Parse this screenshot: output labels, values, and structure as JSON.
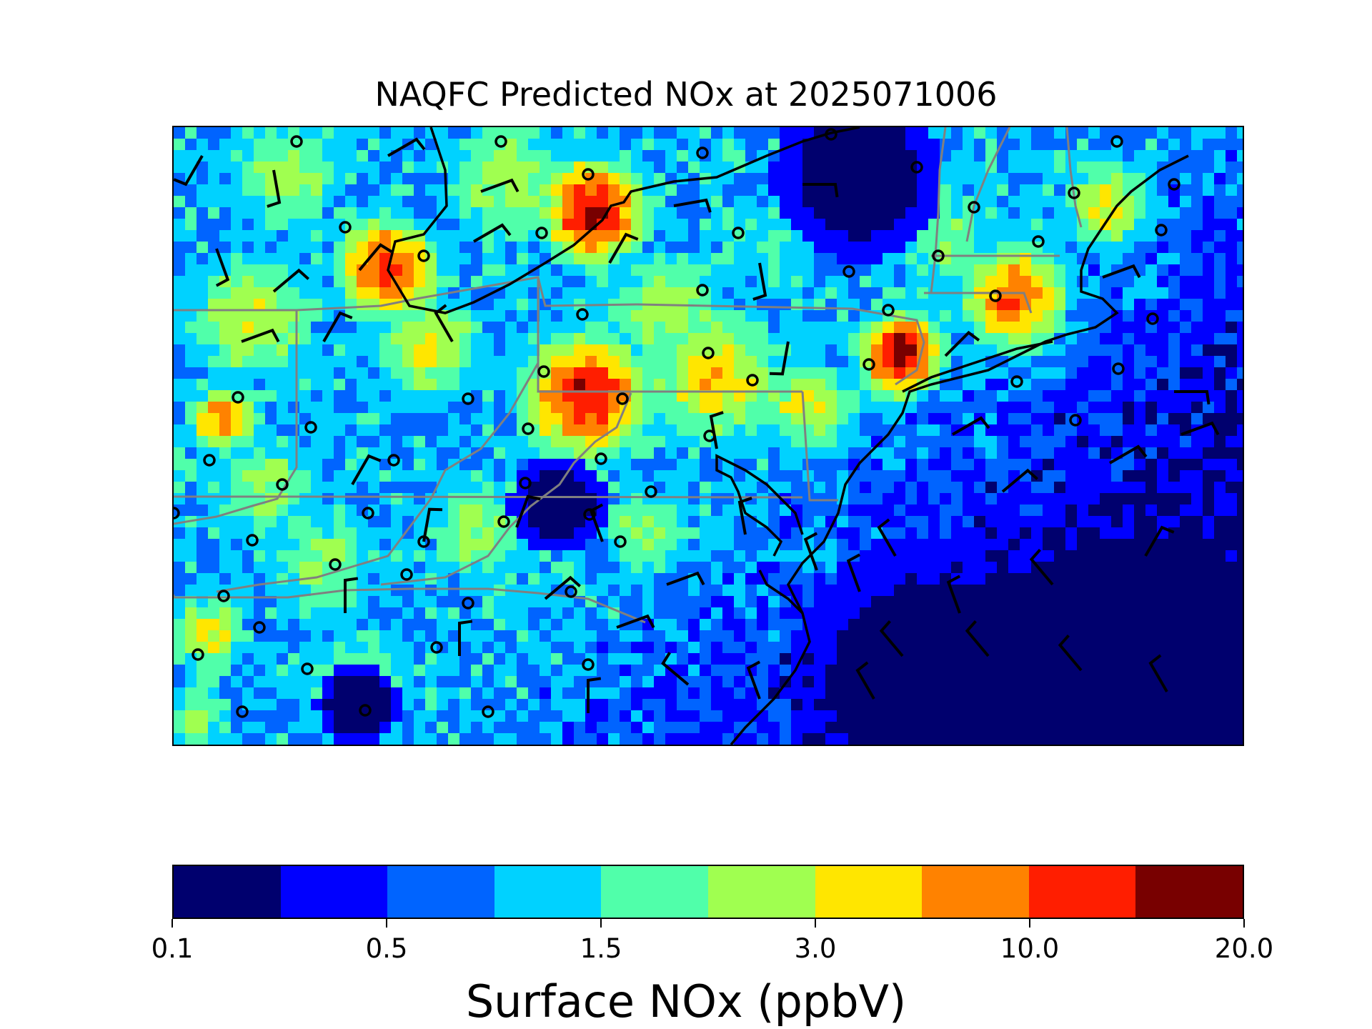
{
  "figure": {
    "title": "NAQFC Predicted NOx at 2025071006"
  },
  "colorbar": {
    "label": "Surface NOx (ppbV)",
    "colors": [
      "#00006e",
      "#0000ff",
      "#0064ff",
      "#00d2ff",
      "#50ffaa",
      "#a0ff50",
      "#ffe600",
      "#ff8200",
      "#ff1e00",
      "#780000"
    ],
    "tick_labels": [
      {
        "text": "0.1",
        "boundary_index": 0
      },
      {
        "text": "0.5",
        "boundary_index": 2
      },
      {
        "text": "1.5",
        "boundary_index": 4
      },
      {
        "text": "3.0",
        "boundary_index": 6
      },
      {
        "text": "10.0",
        "boundary_index": 8
      },
      {
        "text": "20.0",
        "boundary_index": 10
      }
    ]
  },
  "map_layers": {
    "field": "predicted surface NOx concentration",
    "overlays": [
      "coastlines",
      "state-borders",
      "wind-barbs",
      "monitor-stations"
    ],
    "palette_note": "map cells colored with colorbar classes"
  }
}
